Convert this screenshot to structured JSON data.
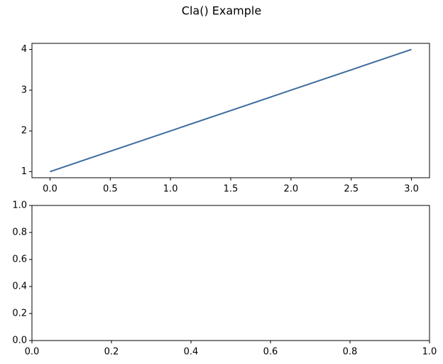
{
  "title": "Cla() Example",
  "chart_data": [
    {
      "type": "line",
      "x": [
        0,
        1,
        2,
        3
      ],
      "series": [
        {
          "color": "#3f6c9e",
          "values": [
            1,
            2,
            3,
            4
          ]
        }
      ],
      "xlim": [
        -0.15,
        3.15
      ],
      "ylim": [
        0.85,
        4.15
      ],
      "xticks": [
        {
          "value": 0,
          "label": "0.0"
        },
        {
          "value": 0.5,
          "label": "0.5"
        },
        {
          "value": 1,
          "label": "1.0"
        },
        {
          "value": 1.5,
          "label": "1.5"
        },
        {
          "value": 2,
          "label": "2.0"
        },
        {
          "value": 2.5,
          "label": "2.5"
        },
        {
          "value": 3,
          "label": "3.0"
        }
      ],
      "yticks": [
        1,
        2,
        3,
        4
      ]
    },
    {
      "type": "line",
      "xlim": [
        0,
        1
      ],
      "ylim": [
        0,
        1
      ],
      "xticks": [
        {
          "value": 0,
          "label": "0.0"
        },
        {
          "value": 0.2,
          "label": "0.2"
        },
        {
          "value": 0.4,
          "label": "0.4"
        },
        {
          "value": 0.6,
          "label": "0.6"
        },
        {
          "value": 0.8,
          "label": "0.8"
        },
        {
          "value": 1,
          "label": "1.0"
        }
      ],
      "yticks": [
        {
          "value": 0,
          "label": "0.0"
        },
        {
          "value": 0.2,
          "label": "0.2"
        },
        {
          "value": 0.4,
          "label": "0.4"
        },
        {
          "value": 0.6,
          "label": "0.6"
        },
        {
          "value": 0.8,
          "label": "0.8"
        },
        {
          "value": 1,
          "label": "1.0"
        }
      ]
    }
  ]
}
